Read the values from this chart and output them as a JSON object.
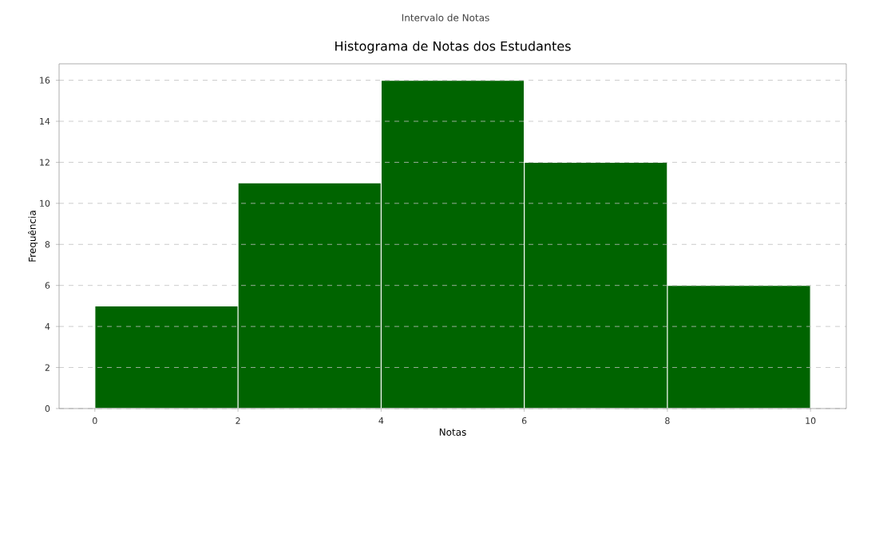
{
  "chart_data": {
    "type": "histogram",
    "title": "Histograma de Notas dos Estudantes",
    "subtitle": "Intervalo de Notas",
    "xlabel": "Notas",
    "ylabel": "Frequência",
    "bins": [
      0,
      2,
      4,
      6,
      8,
      10
    ],
    "values": [
      5,
      11,
      16,
      12,
      6
    ],
    "color": "#006400",
    "xlim": [
      -0.5,
      10.5
    ],
    "ylim": [
      0,
      16.8
    ],
    "xticks": [
      0,
      2,
      4,
      6,
      8,
      10
    ],
    "yticks": [
      0,
      2,
      4,
      6,
      8,
      10,
      12,
      14,
      16
    ],
    "grid": "y"
  }
}
